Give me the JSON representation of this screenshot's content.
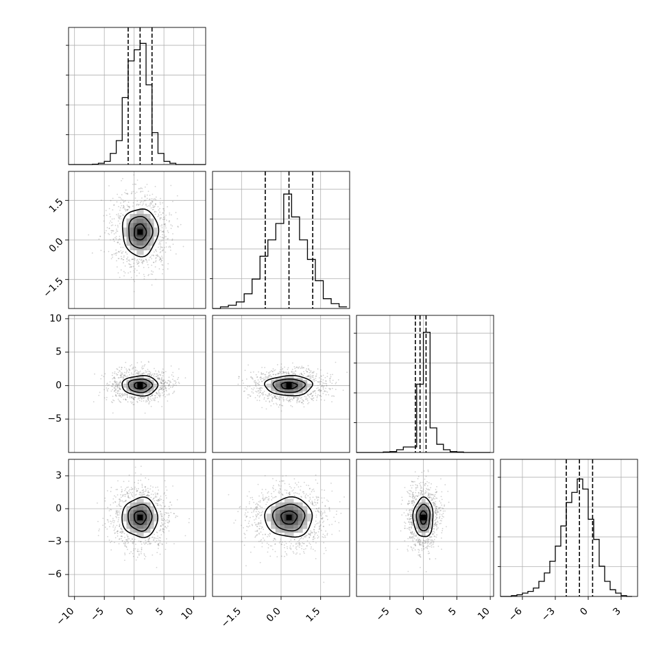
{
  "chart_data": {
    "type": "corner",
    "grid": true,
    "parameters": [
      {
        "range": [
          -11,
          12
        ],
        "ticks": [
          -10,
          -5,
          0,
          5,
          10
        ],
        "tick_labels": [
          "−10",
          "−5",
          "0",
          "5",
          "10"
        ],
        "quantiles": [
          -1,
          1,
          3
        ],
        "mean": 1.0,
        "std": 2.0,
        "hist_edges": [
          -11,
          -10,
          -9,
          -8,
          -7,
          -6,
          -5,
          -4,
          -3,
          -2,
          -1,
          0,
          1,
          2,
          3,
          4,
          5,
          6,
          7,
          8,
          9,
          10,
          11,
          12
        ],
        "hist_counts": [
          0,
          0,
          0,
          0,
          2,
          8,
          20,
          70,
          150,
          420,
          650,
          720,
          760,
          500,
          200,
          70,
          20,
          8,
          0,
          0,
          0,
          0,
          0
        ],
        "hist_ymax": 800
      },
      {
        "range": [
          -2.6,
          2.6
        ],
        "ticks": [
          -1.5,
          0.0,
          1.5
        ],
        "tick_labels": [
          "−1.5",
          "0.0",
          "1.5"
        ],
        "quantiles": [
          -0.6,
          0.3,
          1.2
        ],
        "mean": 0.3,
        "std": 0.6,
        "hist_edges": [
          -2.6,
          -2.3,
          -2.0,
          -1.7,
          -1.4,
          -1.1,
          -0.8,
          -0.5,
          -0.2,
          0.1,
          0.4,
          0.7,
          1.0,
          1.3,
          1.6,
          1.9,
          2.2,
          2.5
        ],
        "hist_counts": [
          0,
          10,
          20,
          40,
          90,
          180,
          320,
          420,
          520,
          700,
          560,
          420,
          300,
          170,
          60,
          30,
          10
        ],
        "hist_ymax": 780
      },
      {
        "range": [
          -10,
          10.5
        ],
        "ticks": [
          -5,
          0,
          5,
          10
        ],
        "tick_labels": [
          "−5",
          "0",
          "5",
          "10"
        ],
        "quantiles": [
          -1.2,
          -0.5,
          0.4
        ],
        "mean": 0.0,
        "std": 1.0,
        "hist_edges": [
          -10,
          -9,
          -8,
          -7,
          -6,
          -5,
          -4,
          -3,
          -2,
          -1,
          0,
          1,
          2,
          3,
          4,
          5,
          6,
          7,
          8,
          9,
          10
        ],
        "hist_counts": [
          0,
          0,
          0,
          0,
          5,
          10,
          30,
          60,
          60,
          750,
          1320,
          270,
          90,
          30,
          10,
          5,
          0,
          0,
          0,
          0
        ],
        "hist_ymax": 1400
      },
      {
        "range": [
          -8,
          4.5
        ],
        "ticks": [
          -6,
          -3,
          0,
          3
        ],
        "tick_labels": [
          "−6",
          "−3",
          "0",
          "3"
        ],
        "quantiles": [
          -2,
          -0.8,
          0.4
        ],
        "mean": -0.8,
        "std": 1.2,
        "hist_edges": [
          -8,
          -7.5,
          -7,
          -6.5,
          -6,
          -5.5,
          -5,
          -4.5,
          -4,
          -3.5,
          -3,
          -2.5,
          -2,
          -1.5,
          -1,
          -0.5,
          0,
          0.5,
          1,
          1.5,
          2,
          2.5,
          3,
          3.5,
          4
        ],
        "hist_counts": [
          0,
          0,
          5,
          10,
          20,
          30,
          50,
          90,
          140,
          210,
          300,
          420,
          560,
          620,
          700,
          640,
          460,
          340,
          180,
          90,
          40,
          20,
          5,
          0
        ],
        "hist_ymax": 760
      }
    ],
    "pairs": [
      {
        "row": 1,
        "col": 0,
        "x_sigma": 2.0,
        "y_sigma": 0.6,
        "rho": 0.0,
        "contours": [
          0.5,
          1.0,
          1.5
        ]
      },
      {
        "row": 2,
        "col": 0,
        "x_sigma": 2.0,
        "y_sigma": 1.0,
        "rho": 0.0,
        "contours": [
          0.5,
          1.0,
          1.5
        ]
      },
      {
        "row": 2,
        "col": 1,
        "x_sigma": 0.6,
        "y_sigma": 1.0,
        "rho": 0.0,
        "contours": [
          0.5,
          1.0,
          1.5
        ]
      },
      {
        "row": 3,
        "col": 0,
        "x_sigma": 2.0,
        "y_sigma": 1.2,
        "rho": 0.0,
        "contours": [
          0.5,
          1.0,
          1.5
        ]
      },
      {
        "row": 3,
        "col": 1,
        "x_sigma": 0.6,
        "y_sigma": 1.2,
        "rho": 0.0,
        "contours": [
          0.5,
          1.0,
          1.5
        ]
      },
      {
        "row": 3,
        "col": 2,
        "x_sigma": 1.0,
        "y_sigma": 1.2,
        "rho": 0.0,
        "contours": [
          0.5,
          1.0,
          1.5
        ]
      }
    ]
  }
}
